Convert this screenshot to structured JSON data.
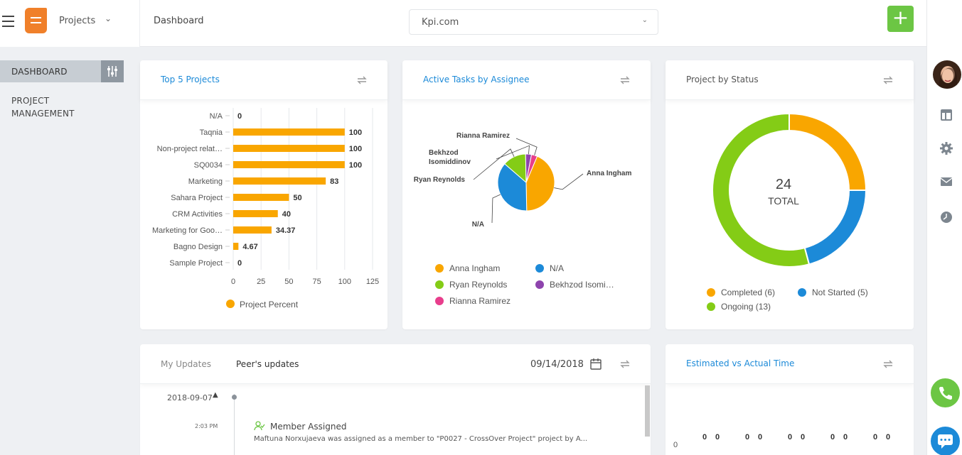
{
  "header": {
    "project_selector": "Projects",
    "page_title": "Dashboard",
    "company_select": "Kpi.com",
    "add_label": "+"
  },
  "nav": {
    "dashboard": "DASHBOARD",
    "project_management": "PROJECT MANAGEMENT"
  },
  "colors": {
    "accent": "#1c8ad8",
    "brand": "#f0802a",
    "green": "#6cc644",
    "orange": "#f9a600",
    "blue": "#1c8ad8",
    "lime": "#84cc16",
    "purple": "#8e44ad",
    "pink": "#e83e8c"
  },
  "cards": {
    "top5": {
      "title": "Top 5 Projects"
    },
    "tasks": {
      "title": "Active Tasks by Assignee"
    },
    "status": {
      "title": "Project by Status"
    },
    "updates": {
      "tab_mine": "My Updates",
      "tab_peers": "Peer's updates",
      "date": "09/14/2018"
    },
    "estimated": {
      "title": "Estimated vs Actual Time"
    }
  },
  "icons": [
    "menu-icon",
    "chevron-down-icon",
    "bell-icon",
    "refresh-icon",
    "calendar-icon",
    "layout-icon",
    "gear-icon",
    "mail-icon",
    "clock-icon",
    "phone-icon",
    "chat-icon",
    "sliders-icon",
    "user-check-icon"
  ],
  "chart_data": [
    {
      "type": "bar",
      "orientation": "horizontal",
      "categories": [
        "N/A",
        "Taqnia",
        "Non-project relat…",
        "SQ0034",
        "Marketing",
        "Sahara Project",
        "CRM Activities",
        "Marketing for Goo…",
        "Bagno Design",
        "Sample Project"
      ],
      "series": [
        {
          "name": "Project Percent",
          "values": [
            0,
            100,
            100,
            100,
            83,
            50,
            40,
            34.37,
            4.67,
            0
          ]
        }
      ],
      "value_labels": [
        "0",
        "100",
        "100",
        "100",
        "83",
        "50",
        "40",
        "34.37",
        "4.67",
        "0"
      ],
      "xticks": [
        "0",
        "25",
        "50",
        "75",
        "100",
        "125"
      ],
      "xlim": [
        0,
        125
      ],
      "grid": true,
      "legend": "bottom"
    },
    {
      "type": "pie",
      "labels": [
        "Anna Ingham",
        "N/A",
        "Ryan Reynolds",
        "Bekhzod Isomiddinov",
        "Rianna Ramirez"
      ],
      "values": [
        13,
        11,
        4,
        1,
        1
      ],
      "outer_labels": [
        "Anna Ingham",
        "N/A",
        "Ryan Reynolds",
        "Bekhzod Isomiddinov",
        "Rianna Ramirez"
      ],
      "legend_labels": [
        "Anna Ingham",
        "N/A",
        "Ryan Reynolds",
        "Bekhzod Isomi…",
        "Rianna Ramirez"
      ],
      "legend": "bottom"
    },
    {
      "type": "pie",
      "donut": true,
      "labels": [
        "Completed",
        "Not Started",
        "Ongoing"
      ],
      "values": [
        6,
        5,
        13
      ],
      "legend_labels": [
        "Completed (6)",
        "Not Started (5)",
        "Ongoing (13)"
      ],
      "center_value": "24",
      "center_label": "TOTAL",
      "legend": "bottom"
    },
    {
      "type": "bar",
      "value_labels": [
        "0",
        "0",
        "0",
        "0",
        "0",
        "0",
        "0",
        "0",
        "0",
        "0"
      ],
      "yticks": [
        "0"
      ]
    }
  ],
  "timeline": {
    "date": "2018-09-07",
    "time": "2:03 PM",
    "event": "Member Assigned",
    "description": "Maftuna Norxujaeva was assigned as a member to \"P0027 - CrossOver Project\" project by A..."
  }
}
